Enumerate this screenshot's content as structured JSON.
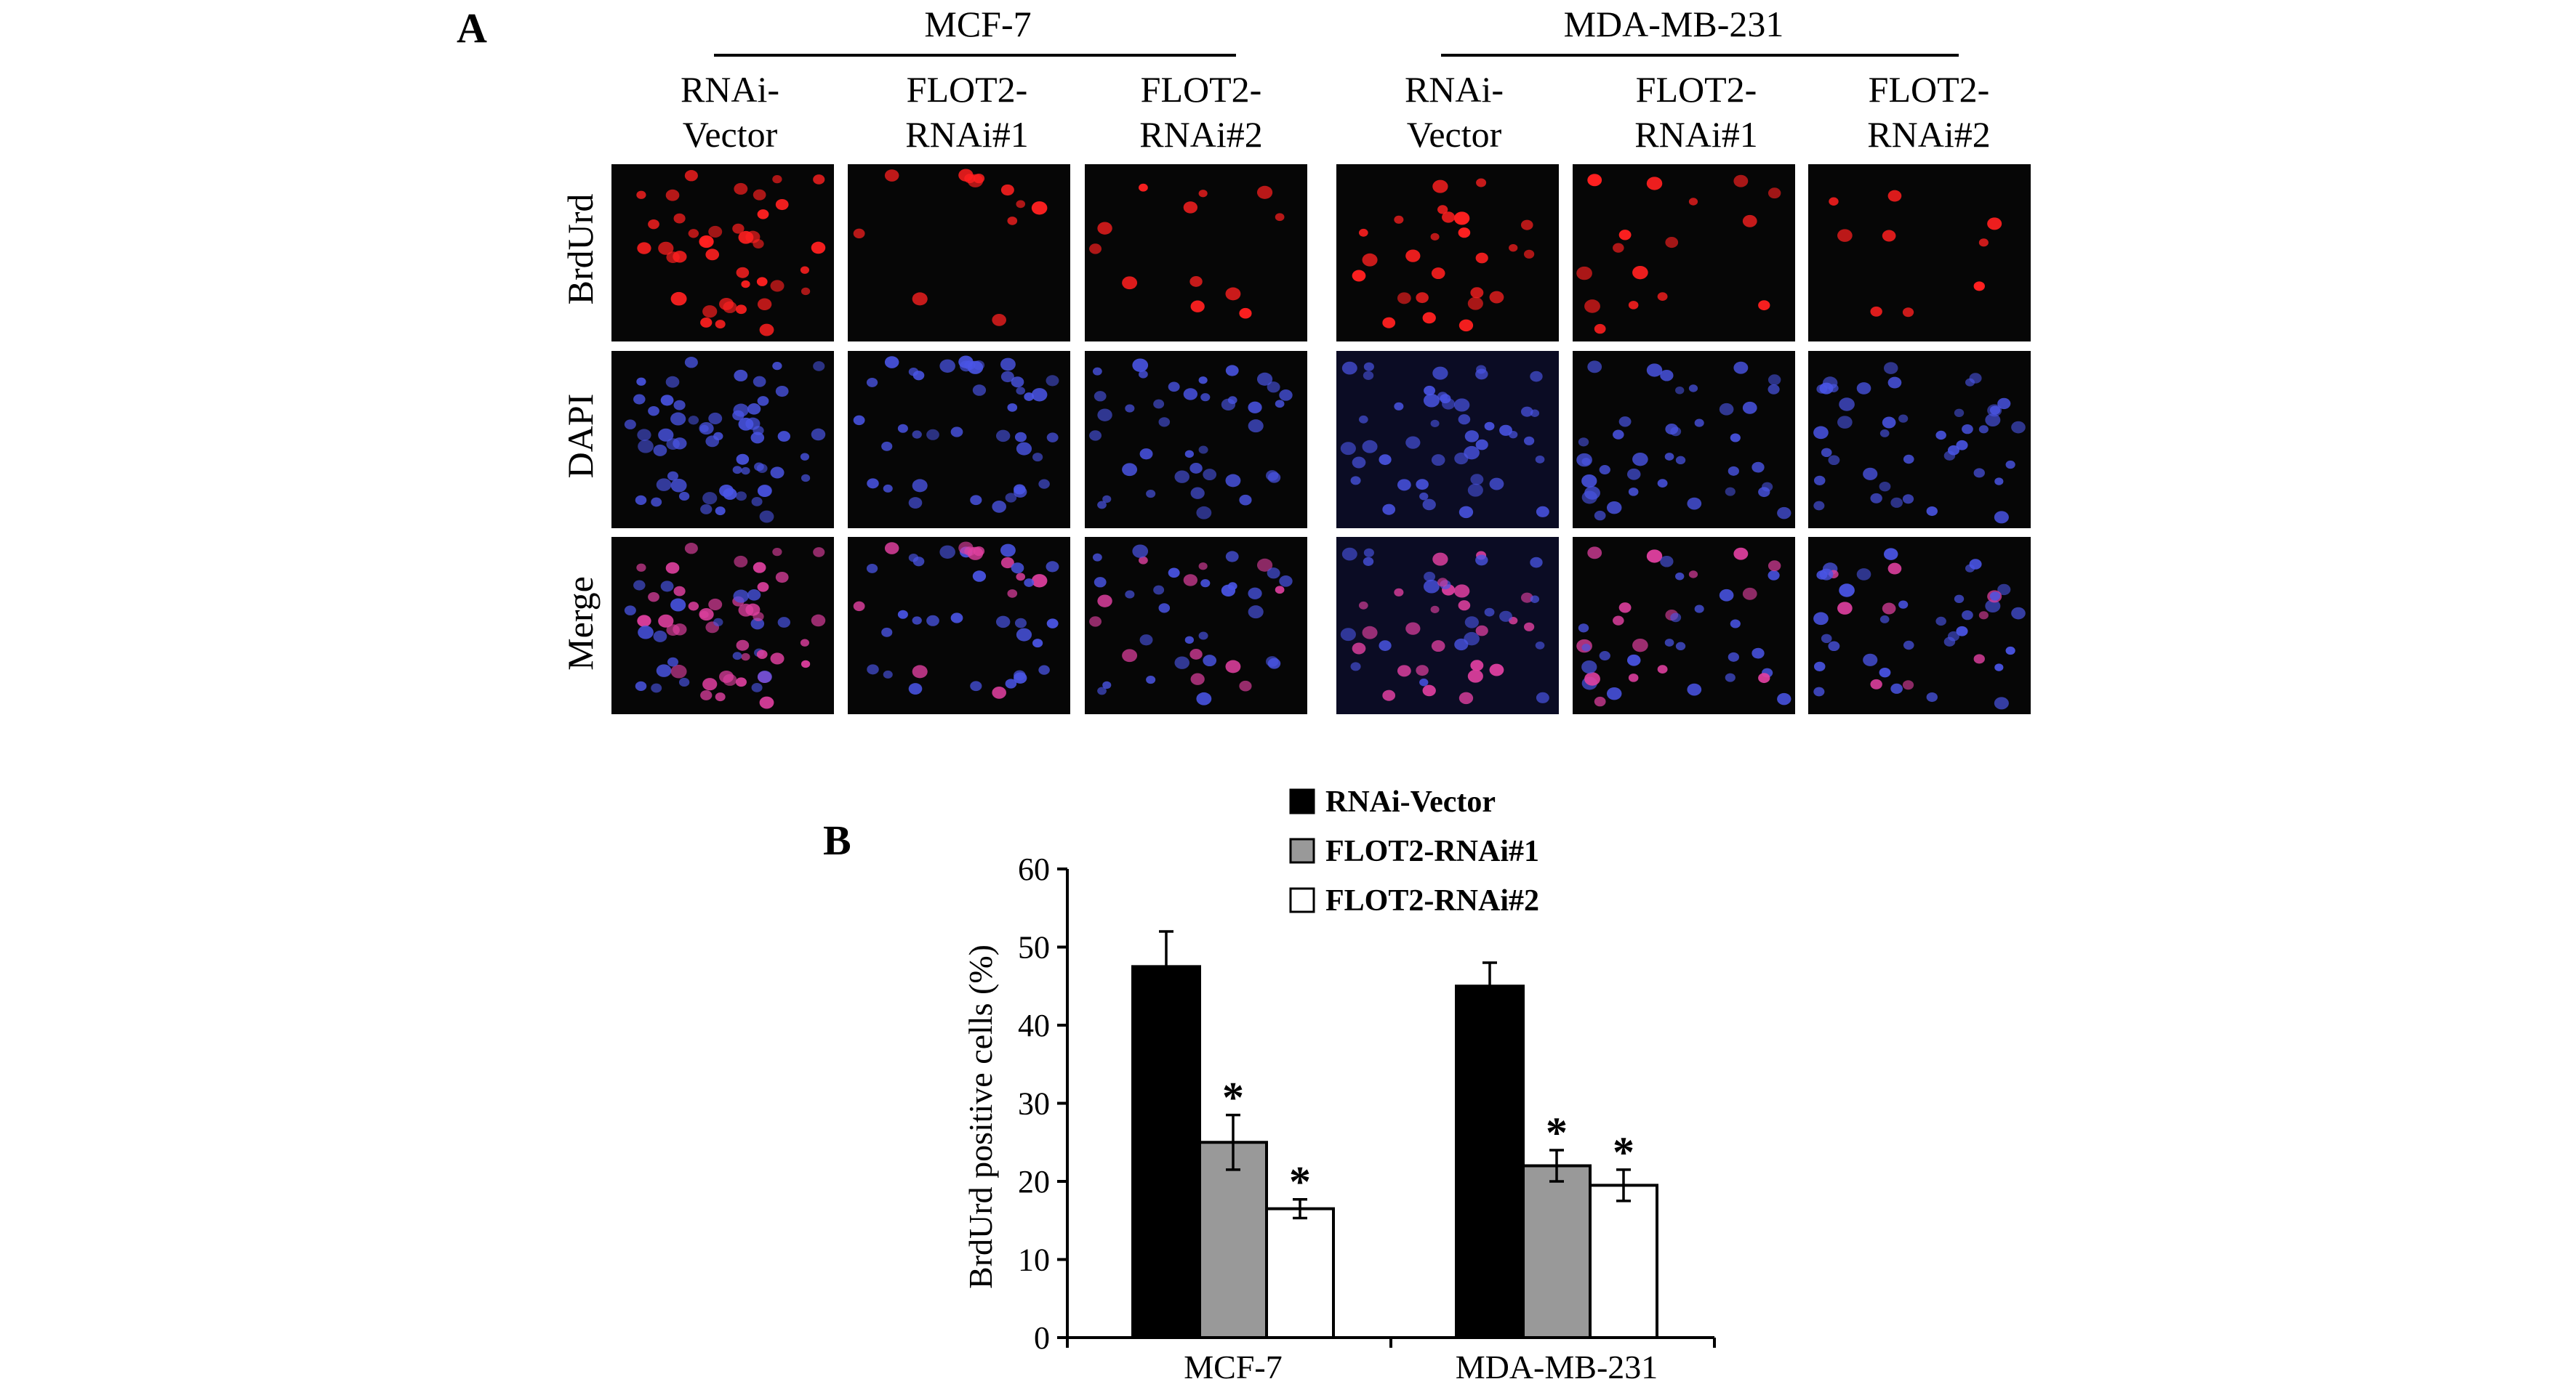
{
  "panel_a": {
    "label": "A",
    "groups": [
      {
        "name": "MCF-7",
        "columns": [
          [
            "RNAi-",
            "Vector"
          ],
          [
            "FLOT2-",
            "RNAi#1"
          ],
          [
            "FLOT2-",
            "RNAi#2"
          ]
        ]
      },
      {
        "name": "MDA-MB-231",
        "columns": [
          [
            "RNAi-",
            "Vector"
          ],
          [
            "FLOT2-",
            "RNAi#1"
          ],
          [
            "FLOT2-",
            "RNAi#2"
          ]
        ]
      }
    ],
    "rows": [
      "BrdUrd",
      "DAPI",
      "Merge"
    ],
    "colors": {
      "brdurd": "#ff2020",
      "dapi": "#4a55e6",
      "merge": "#e040a0",
      "image_bg": "#060606"
    }
  },
  "panel_b": {
    "label": "B",
    "chart_data": {
      "type": "bar",
      "categories": [
        "MCF-7",
        "MDA-MB-231"
      ],
      "series": [
        {
          "name": "RNAi-Vector",
          "values": [
            47.5,
            45
          ],
          "errors": [
            4.5,
            3
          ],
          "color": "#000000"
        },
        {
          "name": "FLOT2-RNAi#1",
          "values": [
            25,
            22
          ],
          "errors": [
            3.5,
            2
          ],
          "color": "#999999"
        },
        {
          "name": "FLOT2-RNAi#2",
          "values": [
            16.5,
            19.5
          ],
          "errors": [
            1.2,
            2
          ],
          "color": "#ffffff"
        }
      ],
      "significance": [
        {
          "series": 1,
          "category": 0,
          "mark": "*"
        },
        {
          "series": 2,
          "category": 0,
          "mark": "*"
        },
        {
          "series": 1,
          "category": 1,
          "mark": "*"
        },
        {
          "series": 2,
          "category": 1,
          "mark": "*"
        }
      ],
      "ylabel": "BrdUrd positive cells (%)",
      "ylim": [
        0,
        60
      ],
      "yticks": [
        0,
        10,
        20,
        30,
        40,
        50,
        60
      ],
      "legend_position": "top",
      "grid": false
    }
  }
}
